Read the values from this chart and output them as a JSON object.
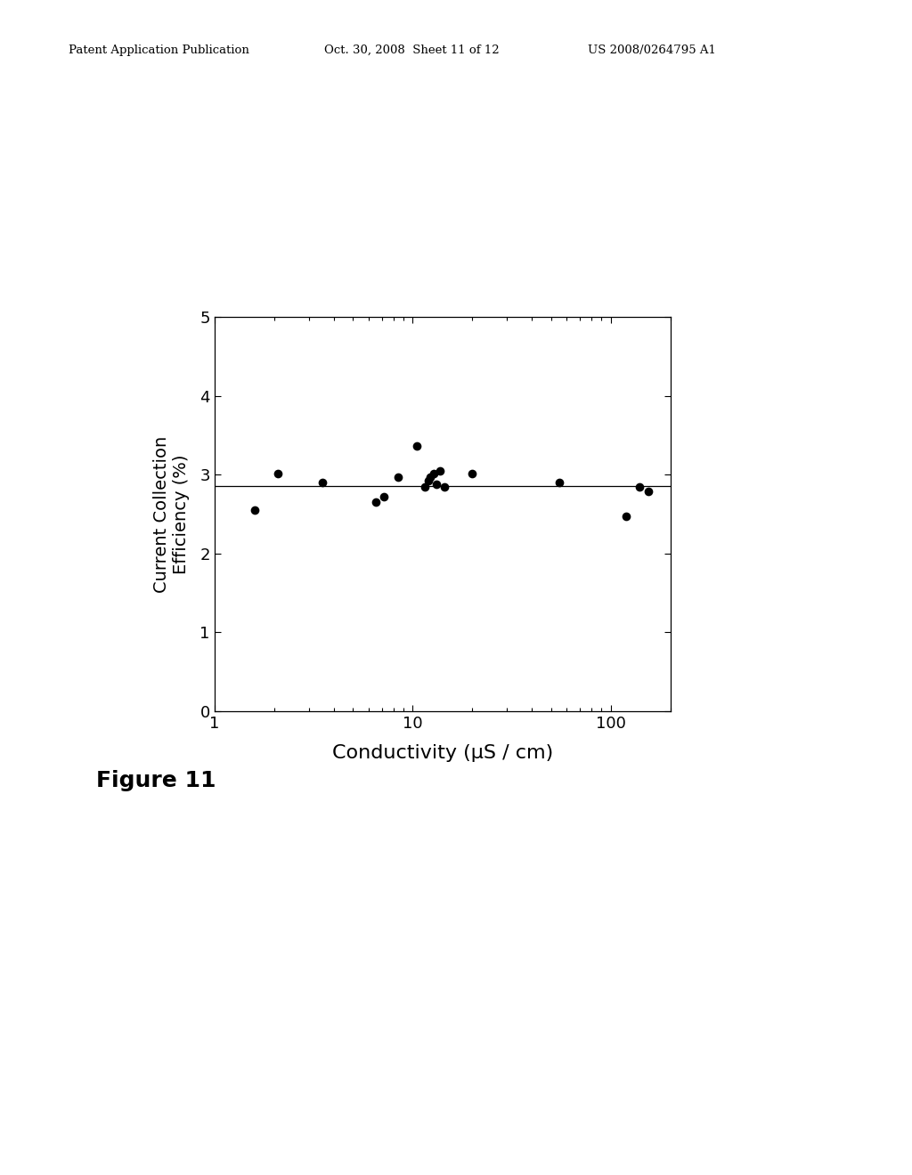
{
  "x_data": [
    1.6,
    2.1,
    3.5,
    6.5,
    7.2,
    8.5,
    10.5,
    11.5,
    12.0,
    12.3,
    12.8,
    13.2,
    13.8,
    14.5,
    20.0,
    55.0,
    120.0,
    140.0,
    155.0
  ],
  "y_data": [
    2.55,
    3.02,
    2.9,
    2.65,
    2.72,
    2.97,
    3.37,
    2.85,
    2.92,
    2.97,
    3.02,
    2.88,
    3.05,
    2.85,
    3.02,
    2.9,
    2.47,
    2.85,
    2.79
  ],
  "hline_y": 2.855,
  "xlabel": "Conductivity (μS / cm)",
  "ylabel": "Current Collection\nEfficiency (%)",
  "figure_label": "Figure 11",
  "xlim_log": [
    0,
    2.3
  ],
  "ylim": [
    0,
    5
  ],
  "yticks": [
    0,
    1,
    2,
    3,
    4,
    5
  ],
  "marker_color": "#000000",
  "marker_size": 7,
  "background_color": "#ffffff",
  "header_left": "Patent Application Publication",
  "header_mid": "Oct. 30, 2008  Sheet 11 of 12",
  "header_right": "US 2008/0264795 A1"
}
